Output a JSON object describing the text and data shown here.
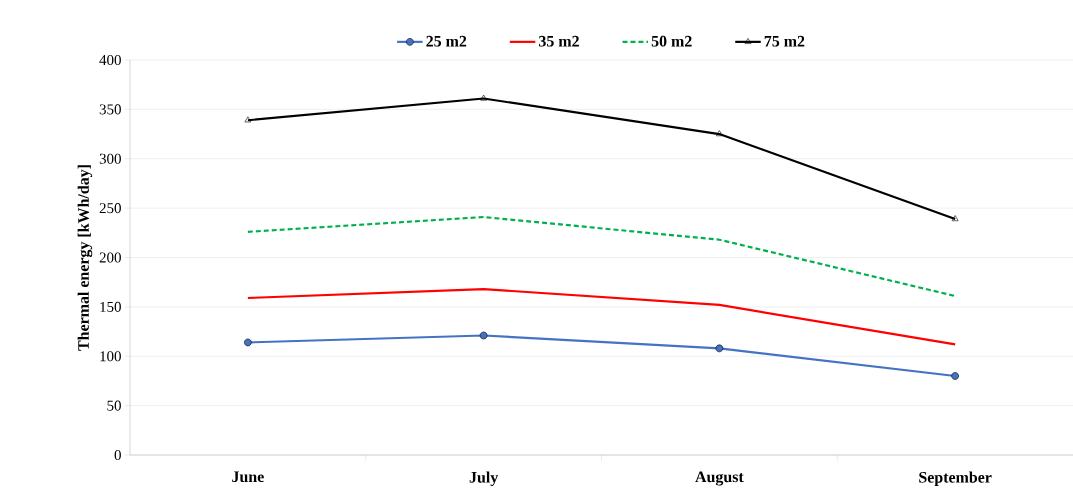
{
  "chart_data": {
    "type": "line",
    "ylabel": "Thermal energy [kWh/day]",
    "categories": [
      "June",
      "July",
      "August",
      "September"
    ],
    "series": [
      {
        "name": "25 m2",
        "color": "#4472c4",
        "values": [
          114,
          121,
          108,
          80
        ],
        "marker": "circle",
        "line_style": "solid"
      },
      {
        "name": "35 m2",
        "color": "#ff0000",
        "values": [
          159,
          168,
          152,
          112
        ],
        "marker": "none",
        "line_style": "solid"
      },
      {
        "name": "50 m2",
        "color": "#00b050",
        "values": [
          226,
          241,
          218,
          161
        ],
        "marker": "none",
        "line_style": "dashed"
      },
      {
        "name": "75 m2",
        "color": "#000000",
        "values": [
          339,
          361,
          325,
          239
        ],
        "marker": "triangle",
        "line_style": "solid"
      }
    ],
    "ylim": [
      0,
      400
    ],
    "yticks": [
      0,
      50,
      100,
      150,
      200,
      250,
      300,
      350,
      400
    ],
    "grid": "y",
    "legend": "top"
  }
}
